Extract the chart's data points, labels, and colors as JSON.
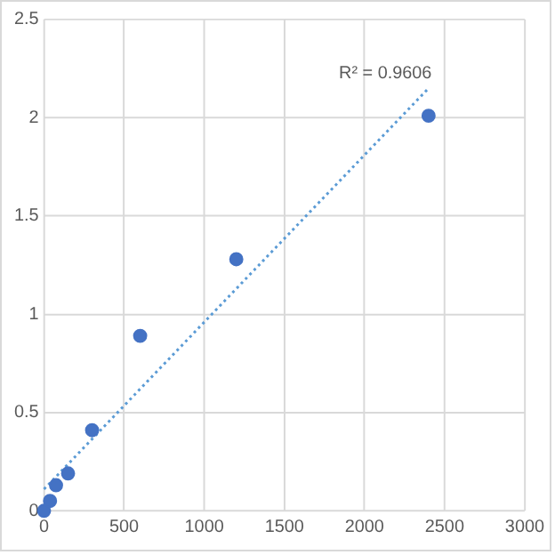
{
  "chart_data": {
    "type": "scatter",
    "x": [
      0,
      37.5,
      75,
      150,
      300,
      600,
      1200,
      2400
    ],
    "series": [
      {
        "color": "#4472c4",
        "values": [
          0,
          0.05,
          0.13,
          0.19,
          0.41,
          0.89,
          1.28,
          2.01
        ]
      },
      {
        "type": "line",
        "color": "#5b9bd5",
        "x": [
          0,
          2400
        ],
        "values": [
          0.11,
          2.15
        ],
        "line_style": "dotted",
        "marker": "none"
      }
    ],
    "xlim": [
      0,
      3000
    ],
    "xticks": [
      0,
      500,
      1000,
      1500,
      2000,
      2500,
      3000
    ],
    "ylim": [
      0,
      2.5
    ],
    "yticks": [
      0,
      0.5,
      1,
      1.5,
      2,
      2.5
    ],
    "grid": true,
    "marker": "circle",
    "legend": false,
    "annotations": [
      "R² = 0.9606"
    ]
  }
}
